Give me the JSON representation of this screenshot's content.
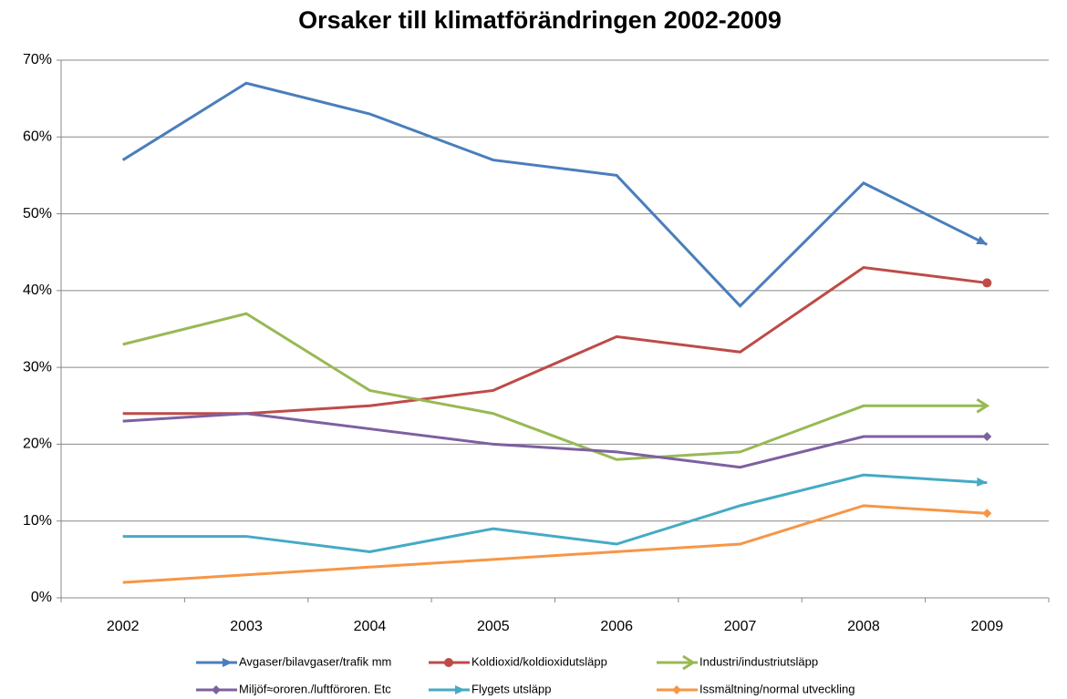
{
  "chart_data": {
    "type": "line",
    "title": "Orsaker till klimatförändringen 2002-2009",
    "categories": [
      "2002",
      "2003",
      "2004",
      "2005",
      "2006",
      "2007",
      "2008",
      "2009"
    ],
    "series": [
      {
        "name": "Avgaser/bilavgaser/trafik mm",
        "color": "#4a7ebb",
        "marker": "arrow",
        "values": [
          57,
          67,
          63,
          57,
          55,
          38,
          54,
          46
        ]
      },
      {
        "name": "Koldioxid/koldioxidutsläpp",
        "color": "#be4b48",
        "marker": "circle",
        "values": [
          24,
          24,
          25,
          27,
          34,
          32,
          43,
          41
        ]
      },
      {
        "name": "Industri/industriutsläpp",
        "color": "#98b954",
        "marker": "open-arrow",
        "values": [
          33,
          37,
          27,
          24,
          18,
          19,
          25,
          25
        ]
      },
      {
        "name": "Miljöf≈ororen./luftföroren. Etc",
        "color": "#7d60a0",
        "marker": "diamond",
        "values": [
          23,
          24,
          22,
          20,
          19,
          17,
          21,
          21
        ]
      },
      {
        "name": "Flygets utsläpp",
        "color": "#46aac5",
        "marker": "arrow",
        "values": [
          8,
          8,
          6,
          9,
          7,
          12,
          16,
          15
        ]
      },
      {
        "name": "Issmältning/normal utveckling",
        "color": "#f79646",
        "marker": "diamond",
        "values": [
          2,
          3,
          4,
          5,
          6,
          7,
          12,
          11
        ]
      }
    ],
    "ylim": [
      0,
      70
    ],
    "yticks": [
      {
        "value": 0,
        "label": "0%"
      },
      {
        "value": 10,
        "label": "10%"
      },
      {
        "value": 20,
        "label": "20%"
      },
      {
        "value": 30,
        "label": "30%"
      },
      {
        "value": 40,
        "label": "40%"
      },
      {
        "value": 50,
        "label": "50%"
      },
      {
        "value": 60,
        "label": "60%"
      },
      {
        "value": 70,
        "label": "70%"
      }
    ],
    "grid": true
  }
}
